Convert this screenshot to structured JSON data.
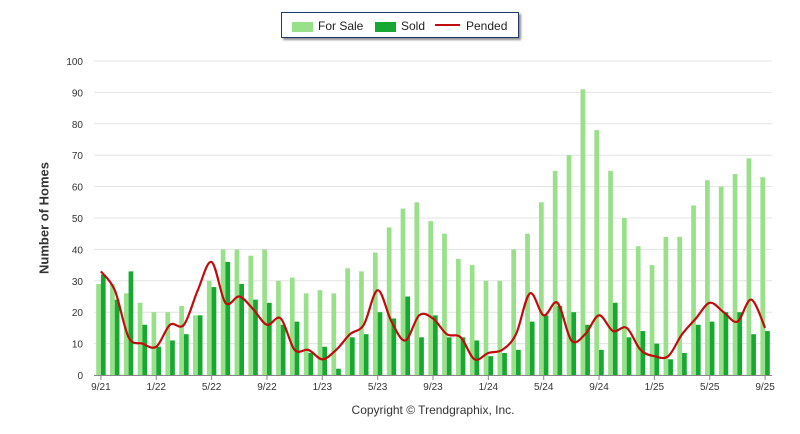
{
  "chart_data": {
    "type": "bar",
    "title": "",
    "ylabel": "Number of Homes",
    "xlabel": "",
    "ylim": [
      0,
      100
    ],
    "yticks": [
      0,
      10,
      20,
      30,
      40,
      50,
      60,
      70,
      80,
      90,
      100
    ],
    "grid": true,
    "legend_position": "top-center",
    "x_tick_labels": [
      {
        "index": 0,
        "label": "9/21"
      },
      {
        "index": 4,
        "label": "1/22"
      },
      {
        "index": 8,
        "label": "5/22"
      },
      {
        "index": 12,
        "label": "9/22"
      },
      {
        "index": 16,
        "label": "1/23"
      },
      {
        "index": 20,
        "label": "5/23"
      },
      {
        "index": 24,
        "label": "9/23"
      },
      {
        "index": 28,
        "label": "1/24"
      },
      {
        "index": 32,
        "label": "5/24"
      },
      {
        "index": 36,
        "label": "9/24"
      },
      {
        "index": 40,
        "label": "1/25"
      },
      {
        "index": 44,
        "label": "5/25"
      },
      {
        "index": 48,
        "label": "9/25"
      }
    ],
    "series": [
      {
        "name": "For Sale",
        "kind": "bar",
        "color": "#99e08a",
        "values": [
          29,
          29,
          26,
          23,
          20,
          20,
          22,
          19,
          30,
          40,
          40,
          38,
          40,
          30,
          31,
          26,
          27,
          26,
          34,
          33,
          39,
          47,
          53,
          55,
          49,
          45,
          37,
          35,
          30,
          30,
          40,
          45,
          55,
          65,
          70,
          91,
          78,
          65,
          50,
          41,
          35,
          44,
          44,
          54,
          62,
          60,
          64,
          69,
          63
        ]
      },
      {
        "name": "Sold",
        "kind": "bar",
        "color": "#17a832",
        "values": [
          32,
          24,
          33,
          16,
          9,
          11,
          13,
          19,
          28,
          36,
          29,
          24,
          23,
          16,
          17,
          7,
          9,
          2,
          12,
          13,
          20,
          18,
          25,
          12,
          19,
          12,
          12,
          11,
          6,
          7,
          8,
          17,
          19,
          22,
          20,
          16,
          8,
          23,
          12,
          14,
          10,
          5,
          7,
          16,
          17,
          20,
          20,
          13,
          14
        ]
      },
      {
        "name": "Pended",
        "kind": "line",
        "color": "#bf0d0d",
        "values": [
          33,
          27,
          12,
          10,
          9,
          16,
          16,
          27,
          36,
          23,
          25,
          21,
          16,
          18,
          8,
          8,
          5,
          8,
          13,
          16,
          27,
          17,
          11,
          19,
          18,
          13,
          12,
          5,
          7,
          8,
          13,
          26,
          19,
          23,
          11,
          13,
          19,
          14,
          15,
          8,
          6,
          6,
          13,
          18,
          23,
          20,
          17,
          24,
          15
        ]
      }
    ]
  },
  "footer": {
    "copyright": "Copyright © Trendgraphix, Inc."
  }
}
